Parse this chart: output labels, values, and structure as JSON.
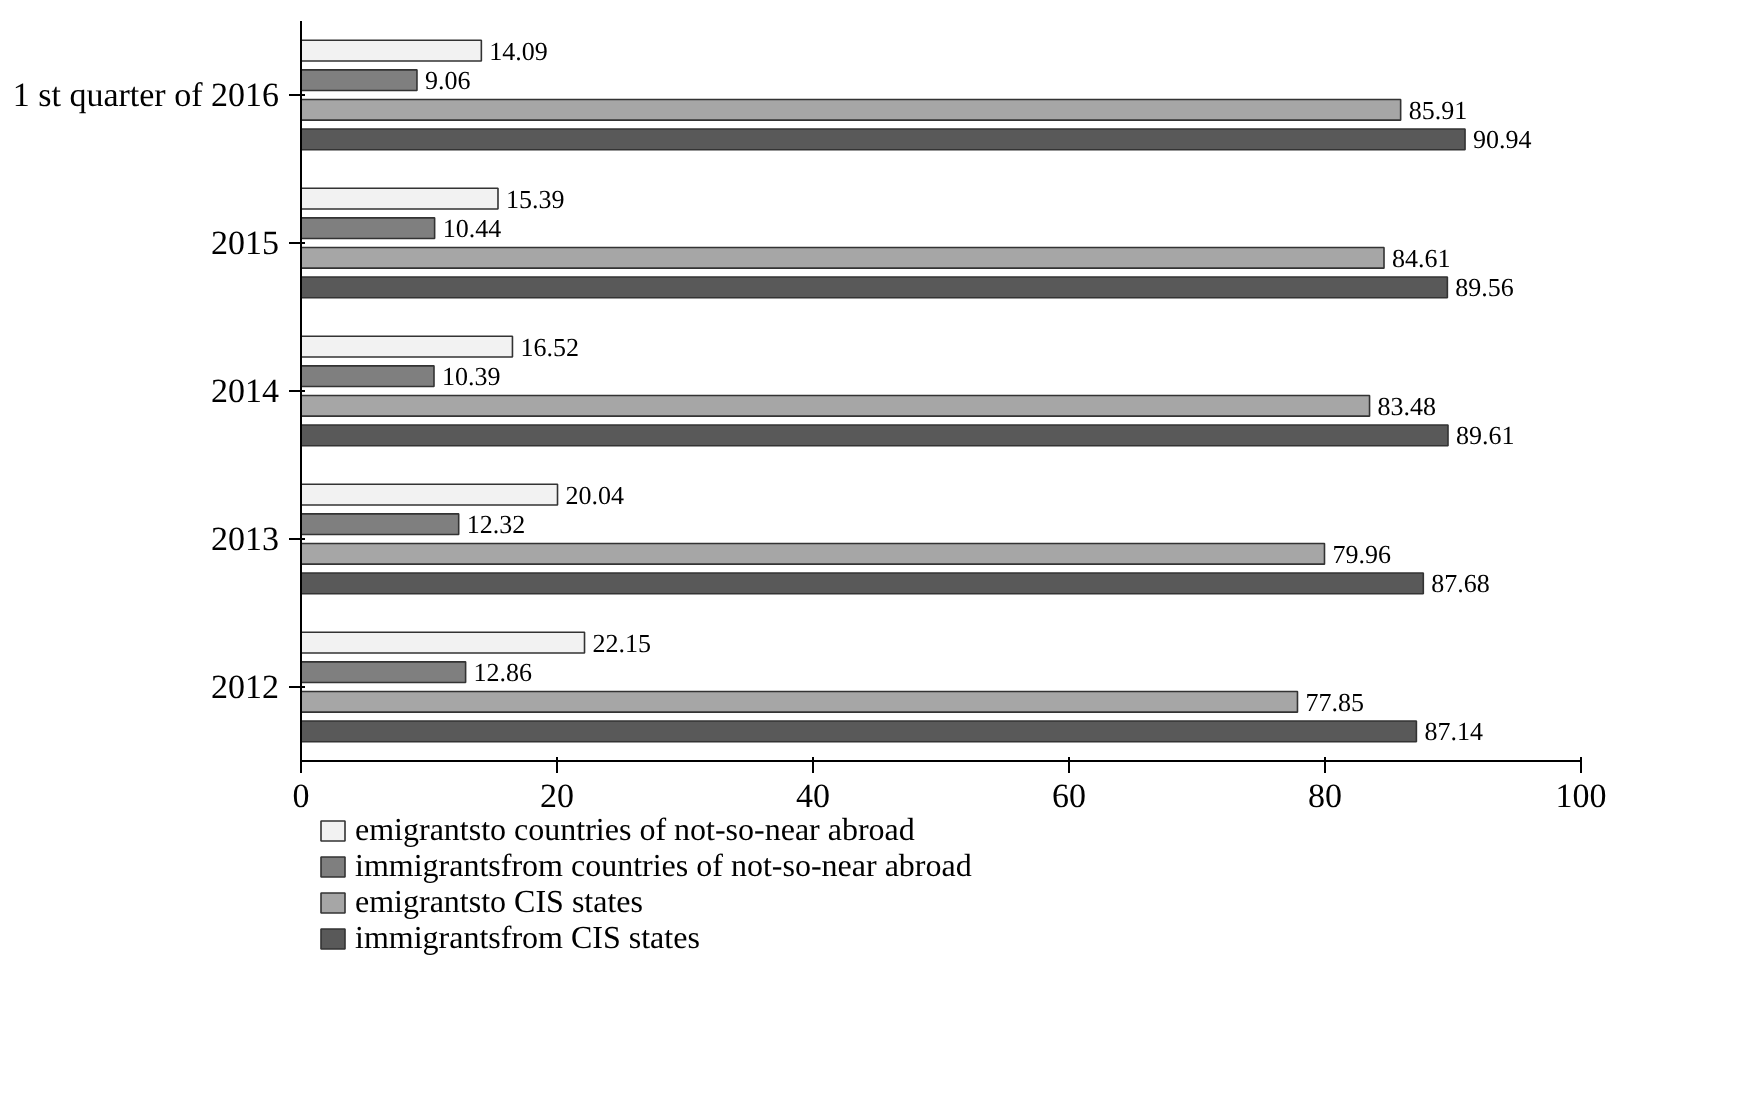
{
  "chart_data": {
    "type": "bar",
    "orientation": "horizontal",
    "categories": [
      "1 st quarter of 2016",
      "2015",
      "2014",
      "2013",
      "2012"
    ],
    "series": [
      {
        "name": "emigrantsto countries of not-so-near abroad",
        "color": "#f2f2f2",
        "values": [
          14.09,
          15.39,
          16.52,
          20.04,
          22.15
        ]
      },
      {
        "name": "immigrantsfrom countries of not-so-near abroad",
        "color": "#7f7f7f",
        "values": [
          9.06,
          10.44,
          10.39,
          12.32,
          12.86
        ]
      },
      {
        "name": "emigrantsto CIS states",
        "color": "#a6a6a6",
        "values": [
          85.91,
          84.61,
          83.48,
          79.96,
          77.85
        ]
      },
      {
        "name": "immigrantsfrom CIS states",
        "color": "#595959",
        "values": [
          90.94,
          89.56,
          89.61,
          87.68,
          87.14
        ]
      }
    ],
    "xlim": [
      0,
      100
    ],
    "xticks": [
      0,
      20,
      40,
      60,
      80,
      100
    ],
    "grid": false,
    "legend": "bottom",
    "data_labels": true
  }
}
